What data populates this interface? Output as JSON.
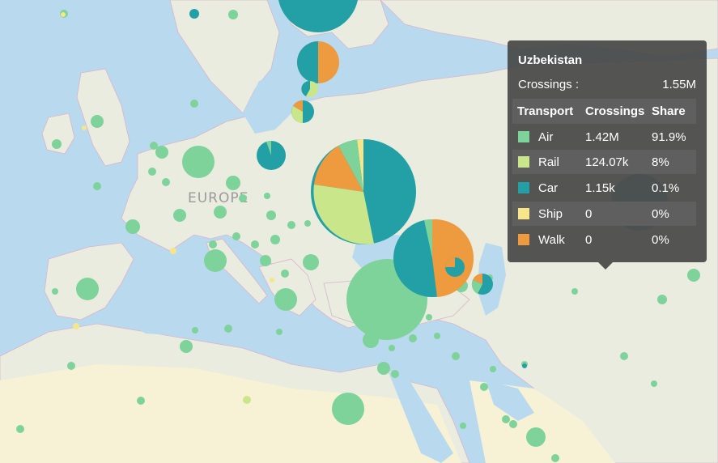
{
  "map": {
    "region_label": "EUROPE",
    "colors": {
      "water": "#b9d9ef",
      "land": "#e9ecdf",
      "desert": "#f7f2d6",
      "border": "#d5a8c8"
    },
    "legend_colors": {
      "Air": "#7ed39a",
      "Rail": "#c9e68a",
      "Car": "#23a0a5",
      "Ship": "#f7e58a",
      "Walk": "#ee9a3f"
    }
  },
  "tooltip": {
    "title": "Uzbekistan",
    "total_label": "Crossings :",
    "total_value": "1.55M",
    "headers": {
      "mode": "Transport",
      "crossings": "Crossings",
      "share": "Share"
    },
    "rows": [
      {
        "mode": "Air",
        "crossings": "1.42M",
        "share": "91.9%",
        "color": "#7ed39a"
      },
      {
        "mode": "Rail",
        "crossings": "124.07k",
        "share": "8%",
        "color": "#c9e68a"
      },
      {
        "mode": "Car",
        "crossings": "1.15k",
        "share": "0.1%",
        "color": "#23a0a5"
      },
      {
        "mode": "Ship",
        "crossings": "0",
        "share": "0%",
        "color": "#f7e58a"
      },
      {
        "mode": "Walk",
        "crossings": "0",
        "share": "0%",
        "color": "#ee9a3f"
      }
    ]
  }
}
